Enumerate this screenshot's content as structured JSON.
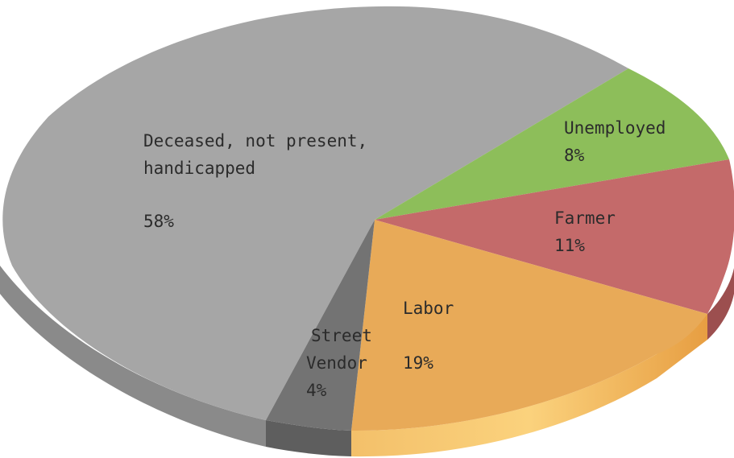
{
  "chart_data": {
    "type": "pie",
    "style": "3d",
    "slices": [
      {
        "name": "Unemployed",
        "percent_label": "8%",
        "value": 8,
        "color": "#8dbe5a",
        "side_color": "#6f9a44"
      },
      {
        "name": "Farmer",
        "percent_label": "11%",
        "value": 11,
        "color": "#c46a6a",
        "side_color": "#9c4f4f"
      },
      {
        "name": "Labor",
        "percent_label": "19%",
        "value": 19,
        "color": "#e8aa58",
        "side_color": "#f0b35a"
      },
      {
        "name": "Street Vendor",
        "percent_label": "4%",
        "value": 4,
        "color": "#737373",
        "side_color": "#5e5e5e"
      },
      {
        "name": "Deceased, not present, handicapped",
        "percent_label": "58%",
        "value": 58,
        "color": "#a6a6a6",
        "side_color": "#8a8a8a"
      }
    ],
    "labels": {
      "unemployed": {
        "line1": "Unemployed",
        "pct": "8%"
      },
      "farmer": {
        "line1": "Farmer",
        "pct": "11%"
      },
      "labor": {
        "line1": "Labor",
        "pct": "19%"
      },
      "street_vendor": {
        "line1": "Street",
        "line2": "Vendor",
        "pct": "4%"
      },
      "deceased": {
        "line1": "Deceased, not present,",
        "line2": "handicapped",
        "pct": "58%"
      }
    }
  }
}
